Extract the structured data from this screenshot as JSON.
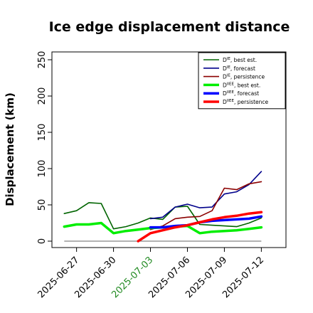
{
  "chart_data": {
    "type": "line",
    "title": "Ice edge displacement distance",
    "xlabel": "",
    "ylabel": "Displacement (km)",
    "ylim": [
      0,
      250
    ],
    "yticks": [
      0,
      50,
      100,
      150,
      200,
      250
    ],
    "xlim": [
      "2025-06-25",
      "2025-07-14"
    ],
    "xticks": [
      {
        "date": "2025-06-27",
        "label": "2025-06-27",
        "color": "#000000"
      },
      {
        "date": "2025-06-30",
        "label": "2025-06-30",
        "color": "#000000"
      },
      {
        "date": "2025-07-03",
        "label": "2025-07-03",
        "color": "#228B22"
      },
      {
        "date": "2025-07-06",
        "label": "2025-07-06",
        "color": "#000000"
      },
      {
        "date": "2025-07-09",
        "label": "2025-07-09",
        "color": "#000000"
      },
      {
        "date": "2025-07-12",
        "label": "2025-07-12",
        "color": "#000000"
      }
    ],
    "grid": false,
    "legend_position": "top-right",
    "series": [
      {
        "name": "D^IE, best est.",
        "color": "#006400",
        "width": 1.6,
        "points": [
          [
            "2025-06-26",
            38
          ],
          [
            "2025-06-27",
            42
          ],
          [
            "2025-06-28",
            53
          ],
          [
            "2025-06-29",
            52
          ],
          [
            "2025-06-30",
            17
          ],
          [
            "2025-07-01",
            20
          ],
          [
            "2025-07-02",
            25
          ],
          [
            "2025-07-03",
            32
          ],
          [
            "2025-07-04",
            30
          ],
          [
            "2025-07-05",
            47
          ],
          [
            "2025-07-06",
            48
          ],
          [
            "2025-07-07",
            23
          ],
          [
            "2025-07-08",
            22
          ],
          [
            "2025-07-09",
            21
          ],
          [
            "2025-07-10",
            20
          ],
          [
            "2025-07-11",
            25
          ],
          [
            "2025-07-12",
            32
          ]
        ]
      },
      {
        "name": "D^IE, forecast",
        "color": "#00008B",
        "width": 1.6,
        "points": [
          [
            "2025-07-03",
            31
          ],
          [
            "2025-07-04",
            33
          ],
          [
            "2025-07-05",
            47
          ],
          [
            "2025-07-06",
            51
          ],
          [
            "2025-07-07",
            46
          ],
          [
            "2025-07-08",
            47
          ],
          [
            "2025-07-09",
            65
          ],
          [
            "2025-07-10",
            68
          ],
          [
            "2025-07-11",
            78
          ],
          [
            "2025-07-12",
            96
          ]
        ]
      },
      {
        "name": "D^IE, persistence",
        "color": "#8B0000",
        "width": 1.6,
        "points": [
          [
            "2025-07-03",
            16
          ],
          [
            "2025-07-04",
            21
          ],
          [
            "2025-07-05",
            31
          ],
          [
            "2025-07-06",
            33
          ],
          [
            "2025-07-07",
            34
          ],
          [
            "2025-07-08",
            42
          ],
          [
            "2025-07-09",
            73
          ],
          [
            "2025-07-10",
            71
          ],
          [
            "2025-07-11",
            79
          ],
          [
            "2025-07-12",
            82
          ]
        ]
      },
      {
        "name": "D^IIEE, best est.",
        "color": "#00EE00",
        "width": 3.5,
        "points": [
          [
            "2025-06-26",
            20
          ],
          [
            "2025-06-27",
            23
          ],
          [
            "2025-06-28",
            23
          ],
          [
            "2025-06-29",
            25
          ],
          [
            "2025-06-30",
            11
          ],
          [
            "2025-07-01",
            14
          ],
          [
            "2025-07-02",
            16
          ],
          [
            "2025-07-03",
            18
          ],
          [
            "2025-07-04",
            19
          ],
          [
            "2025-07-05",
            20
          ],
          [
            "2025-07-06",
            21
          ],
          [
            "2025-07-07",
            11
          ],
          [
            "2025-07-08",
            13
          ],
          [
            "2025-07-09",
            14
          ],
          [
            "2025-07-10",
            15
          ],
          [
            "2025-07-11",
            17
          ],
          [
            "2025-07-12",
            19
          ]
        ]
      },
      {
        "name": "D^IIEE, forecast",
        "color": "#0000FF",
        "width": 3.5,
        "points": [
          [
            "2025-07-03",
            19
          ],
          [
            "2025-07-04",
            19
          ],
          [
            "2025-07-05",
            21
          ],
          [
            "2025-07-06",
            22
          ],
          [
            "2025-07-07",
            26
          ],
          [
            "2025-07-08",
            28
          ],
          [
            "2025-07-09",
            29
          ],
          [
            "2025-07-10",
            30
          ],
          [
            "2025-07-11",
            31
          ],
          [
            "2025-07-12",
            34
          ]
        ]
      },
      {
        "name": "D^IIEE, persistence",
        "color": "#FF0000",
        "width": 3.5,
        "points": [
          [
            "2025-07-02",
            0
          ],
          [
            "2025-07-03",
            11
          ],
          [
            "2025-07-04",
            15
          ],
          [
            "2025-07-05",
            19
          ],
          [
            "2025-07-06",
            22
          ],
          [
            "2025-07-07",
            26
          ],
          [
            "2025-07-08",
            30
          ],
          [
            "2025-07-09",
            33
          ],
          [
            "2025-07-10",
            35
          ],
          [
            "2025-07-11",
            38
          ],
          [
            "2025-07-12",
            40
          ]
        ]
      }
    ],
    "baseline": {
      "color": "#666666",
      "points": [
        [
          "2025-06-26",
          0
        ],
        [
          "2025-07-12",
          0
        ]
      ]
    },
    "legend": [
      {
        "series": 0,
        "base": "D",
        "sup": "IE",
        "suffix": ", best est."
      },
      {
        "series": 1,
        "base": "D",
        "sup": "IE",
        "suffix": ", forecast"
      },
      {
        "series": 2,
        "base": "D",
        "sup": "IE",
        "suffix": ", persistence"
      },
      {
        "series": 3,
        "base": "D",
        "sup": "IIEE",
        "suffix": ", best est."
      },
      {
        "series": 4,
        "base": "D",
        "sup": "IIEE",
        "suffix": ", forecast"
      },
      {
        "series": 5,
        "base": "D",
        "sup": "IIEE",
        "suffix": ", persistence"
      }
    ]
  }
}
